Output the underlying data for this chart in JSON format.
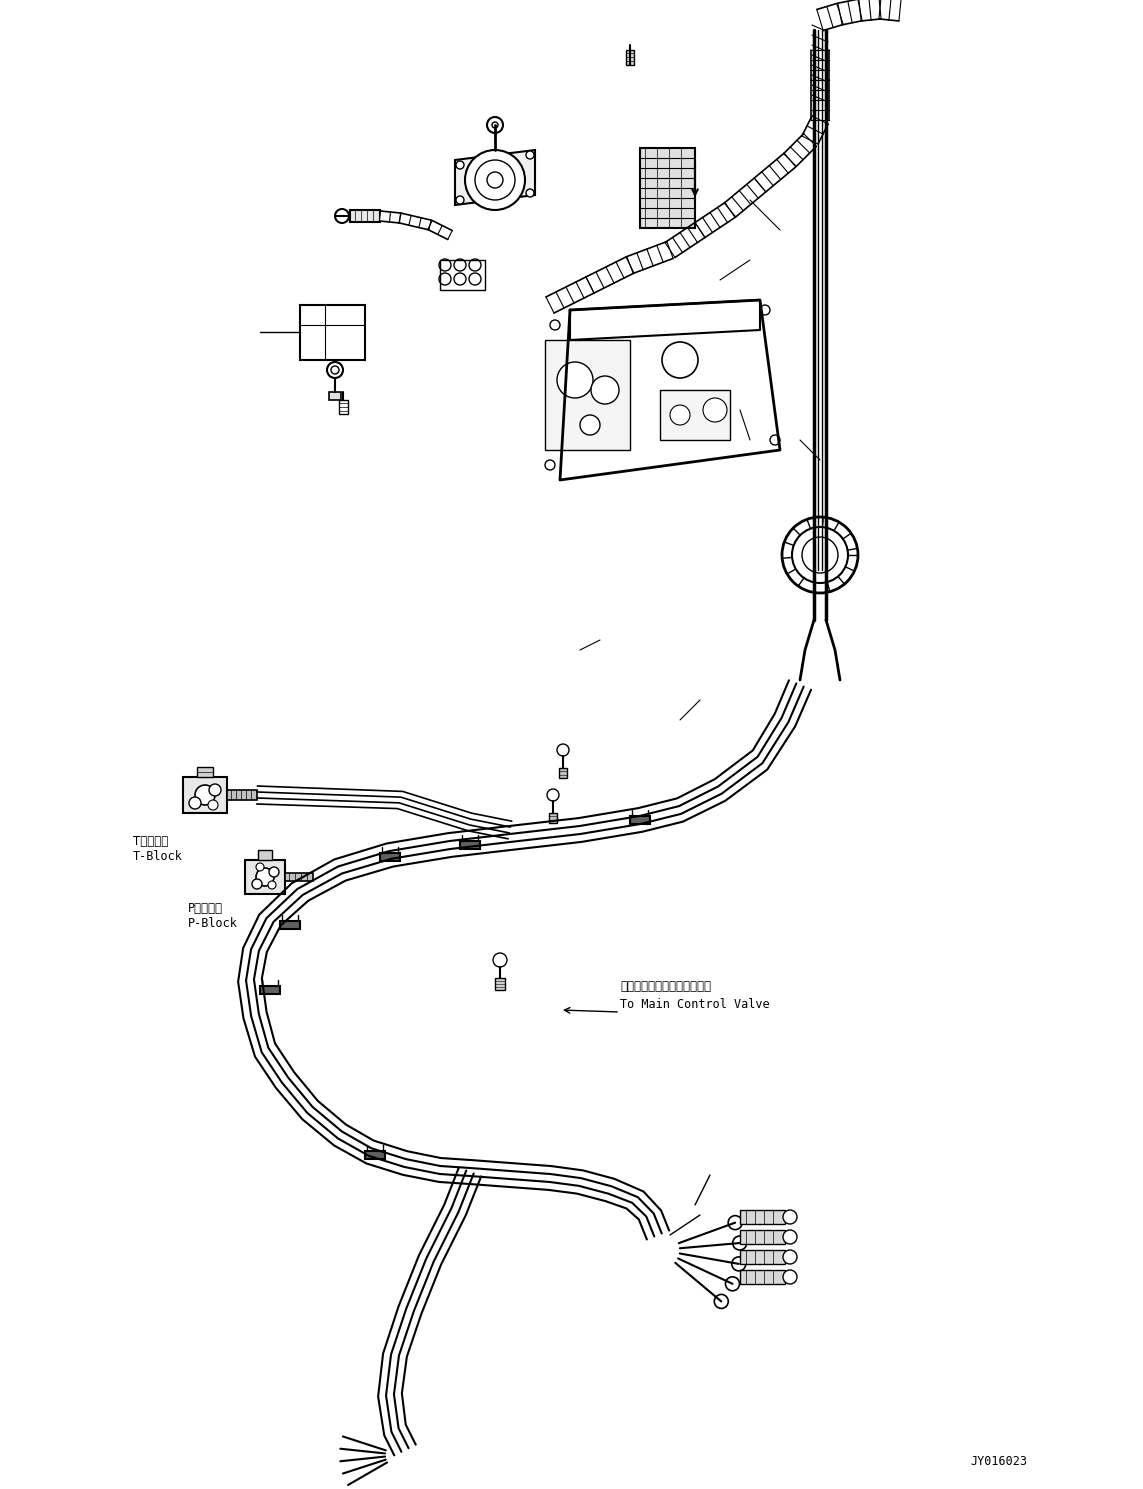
{
  "background_color": "#ffffff",
  "figure_width": 11.43,
  "figure_height": 14.89,
  "dpi": 100,
  "part_id": "JY016023",
  "line_color": "#000000",
  "t_block_ja": "Tブロック",
  "t_block_en": "T-Block",
  "p_block_ja": "Pブロック",
  "p_block_en": "P-Block",
  "main_valve_ja": "メインコントロールバルブへ",
  "main_valve_en": "To Main Control Valve"
}
